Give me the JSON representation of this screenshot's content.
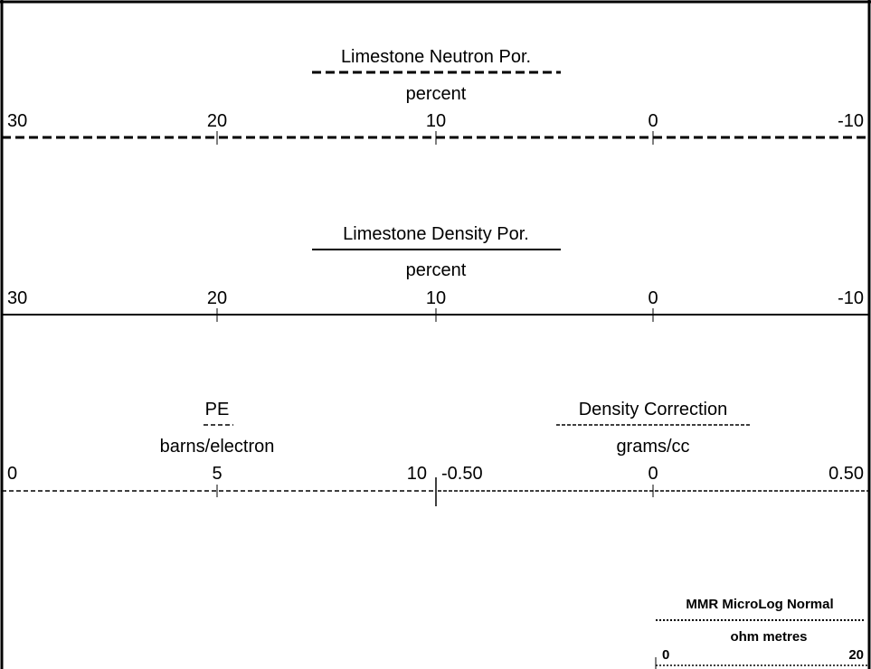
{
  "headers": [
    {
      "title": "Limestone Neutron Por.",
      "unit": "percent",
      "scale": [
        "30",
        "20",
        "10",
        "0",
        "-10"
      ]
    },
    {
      "title": "Limestone Density Por.",
      "unit": "percent",
      "scale": [
        "30",
        "20",
        "10",
        "0",
        "-10"
      ]
    },
    {
      "title": "PE",
      "unit": "barns/electron",
      "scale": [
        "0",
        "5",
        "10"
      ]
    },
    {
      "title": "Density Correction",
      "unit": "grams/cc",
      "scale": [
        "-0.50",
        "0",
        "0.50"
      ]
    },
    {
      "title": "MMR MicroLog Normal",
      "unit": "ohm metres",
      "scale": [
        "0",
        "20"
      ]
    }
  ]
}
